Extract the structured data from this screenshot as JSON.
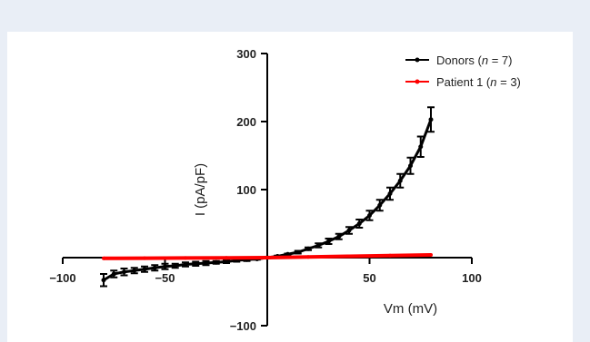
{
  "chart_data": {
    "type": "line",
    "xlabel": "Vm (mV)",
    "ylabel": "I (pA/pF)",
    "xlim": [
      -100,
      100
    ],
    "ylim": [
      -100,
      300
    ],
    "x_ticks": [
      -100,
      -50,
      50,
      100
    ],
    "x_tick_labels": [
      "−100",
      "−50",
      "50",
      "100"
    ],
    "y_ticks": [
      -100,
      100,
      200,
      300
    ],
    "y_tick_labels": [
      "−100",
      "100",
      "200",
      "300"
    ],
    "legend_position": "top-right",
    "series": [
      {
        "name_parts": [
          "Donors (",
          "n",
          " = 7)"
        ],
        "color": "#000000",
        "marker": "dot",
        "error_bars": true,
        "x": [
          -80,
          -75,
          -70,
          -65,
          -60,
          -55,
          -50,
          -45,
          -40,
          -35,
          -30,
          -25,
          -20,
          -15,
          -10,
          -5,
          0,
          5,
          10,
          15,
          20,
          25,
          30,
          35,
          40,
          45,
          50,
          55,
          60,
          65,
          70,
          75,
          80
        ],
        "y": [
          -33,
          -24,
          -21,
          -19,
          -17,
          -15,
          -13,
          -12,
          -10,
          -9,
          -8,
          -7,
          -6,
          -4,
          -3,
          -2,
          0,
          2,
          5,
          8,
          13,
          18,
          24,
          31,
          40,
          50,
          62,
          77,
          94,
          113,
          135,
          163,
          203
        ],
        "error": [
          9,
          5,
          5,
          4,
          4,
          4,
          4,
          3,
          3,
          3,
          3,
          2,
          2,
          2,
          2,
          1,
          1,
          1,
          1,
          2,
          2,
          3,
          4,
          4,
          5,
          6,
          7,
          8,
          9,
          10,
          12,
          15,
          18
        ]
      },
      {
        "name_parts": [
          "Patient 1 (",
          "n",
          " = 3)"
        ],
        "color": "#ff0000",
        "marker": "dot",
        "error_bars": false,
        "x": [
          -80,
          -60,
          -40,
          -20,
          0,
          20,
          40,
          60,
          80
        ],
        "y": [
          -1,
          -0.8,
          -0.5,
          -0.3,
          0,
          1,
          2,
          3,
          4
        ]
      }
    ]
  }
}
